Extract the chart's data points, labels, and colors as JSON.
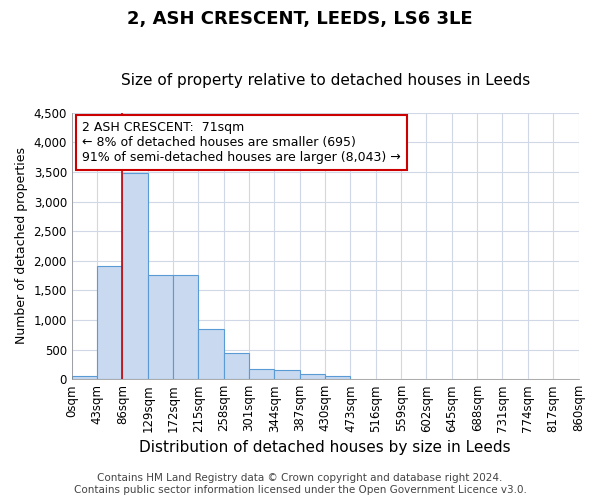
{
  "title": "2, ASH CRESCENT, LEEDS, LS6 3LE",
  "subtitle": "Size of property relative to detached houses in Leeds",
  "xlabel": "Distribution of detached houses by size in Leeds",
  "ylabel": "Number of detached properties",
  "bin_edges": [
    0,
    43,
    86,
    129,
    172,
    215,
    258,
    301,
    344,
    387,
    430,
    473,
    516,
    559,
    602,
    645,
    688,
    731,
    774,
    817,
    860
  ],
  "bar_heights": [
    55,
    1920,
    3490,
    1760,
    1760,
    850,
    450,
    180,
    160,
    90,
    55,
    0,
    0,
    0,
    0,
    0,
    0,
    0,
    0,
    0
  ],
  "bar_color": "#c9d9f0",
  "bar_edge_color": "#5b9bd5",
  "ylim": [
    0,
    4500
  ],
  "red_line_x": 86,
  "annotation_text": "2 ASH CRESCENT:  71sqm\n← 8% of detached houses are smaller (695)\n91% of semi-detached houses are larger (8,043) →",
  "annotation_box_color": "#ffffff",
  "annotation_box_edge": "#cc0000",
  "footnote1": "Contains HM Land Registry data © Crown copyright and database right 2024.",
  "footnote2": "Contains public sector information licensed under the Open Government Licence v3.0.",
  "background_color": "#ffffff",
  "plot_background_color": "#ffffff",
  "grid_color": "#d0d8e8",
  "title_fontsize": 13,
  "subtitle_fontsize": 11,
  "xlabel_fontsize": 11,
  "ylabel_fontsize": 9,
  "tick_fontsize": 8.5,
  "footnote_fontsize": 7.5
}
